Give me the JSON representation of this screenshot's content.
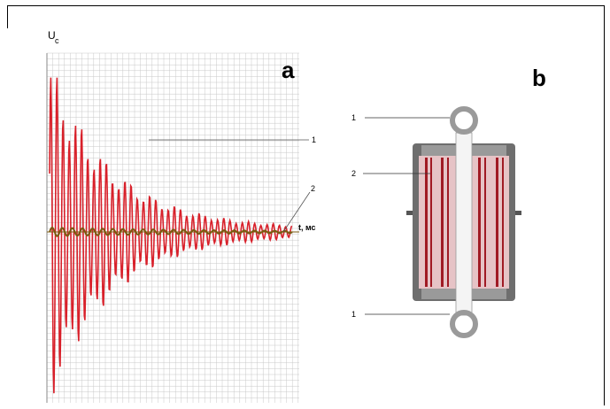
{
  "panel_a": {
    "letter": "a",
    "y_label_main": "U",
    "y_label_sub": "c",
    "x_label": "t, мс",
    "callout_1": "1",
    "callout_2": "2"
  },
  "panel_b": {
    "letter": "b",
    "callout_top_1": "1",
    "callout_2": "2",
    "callout_bottom_1": "1"
  },
  "colors": {
    "signal_1": "#d8202a",
    "signal_2": "#7a5a10",
    "grid": "#c8c8c8",
    "device_body": "#6e6e6e",
    "device_panel": "#e6c3c6",
    "electrode": "#a01a24"
  }
}
